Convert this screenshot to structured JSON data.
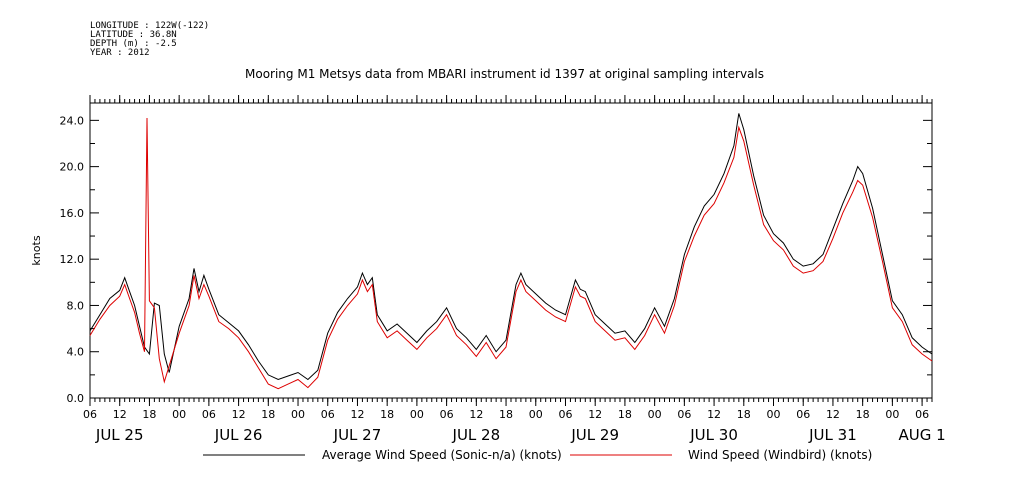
{
  "metadata": {
    "longitude": "LONGITUDE : 122W(-122)",
    "latitude": "LATITUDE : 36.8N",
    "depth": "DEPTH (m) : -2.5",
    "year": "YEAR : 2012"
  },
  "colors": {
    "sonic": "#000000",
    "windbird": "#dd0000"
  },
  "chart_data": {
    "type": "line",
    "title": "Mooring M1 Metsys data from MBARI instrument id 1397 at original sampling intervals",
    "ylabel": "knots",
    "ylim": [
      0,
      25.5
    ],
    "yticks": [
      "0.0",
      "4.0",
      "8.0",
      "12.0",
      "16.0",
      "20.0",
      "24.0"
    ],
    "xlim": [
      "2012-07-25 06:00",
      "2012-08-01 08:00"
    ],
    "xticks": [
      [
        "2012-07-25 06:00",
        "06"
      ],
      [
        "2012-07-25 12:00",
        "12"
      ],
      [
        "2012-07-25 18:00",
        "18"
      ],
      [
        "2012-07-26 00:00",
        "00"
      ],
      [
        "2012-07-26 06:00",
        "06"
      ],
      [
        "2012-07-26 12:00",
        "12"
      ],
      [
        "2012-07-26 18:00",
        "18"
      ],
      [
        "2012-07-27 00:00",
        "00"
      ],
      [
        "2012-07-27 06:00",
        "06"
      ],
      [
        "2012-07-27 12:00",
        "12"
      ],
      [
        "2012-07-27 18:00",
        "18"
      ],
      [
        "2012-07-28 00:00",
        "00"
      ],
      [
        "2012-07-28 06:00",
        "06"
      ],
      [
        "2012-07-28 12:00",
        "12"
      ],
      [
        "2012-07-28 18:00",
        "18"
      ],
      [
        "2012-07-29 00:00",
        "00"
      ],
      [
        "2012-07-29 06:00",
        "06"
      ],
      [
        "2012-07-29 12:00",
        "12"
      ],
      [
        "2012-07-29 18:00",
        "18"
      ],
      [
        "2012-07-30 00:00",
        "00"
      ],
      [
        "2012-07-30 06:00",
        "06"
      ],
      [
        "2012-07-30 12:00",
        "12"
      ],
      [
        "2012-07-30 18:00",
        "18"
      ],
      [
        "2012-07-31 00:00",
        "00"
      ],
      [
        "2012-07-31 06:00",
        "06"
      ],
      [
        "2012-07-31 12:00",
        "12"
      ],
      [
        "2012-07-31 18:00",
        "18"
      ],
      [
        "2012-08-01 00:00",
        "00"
      ],
      [
        "2012-08-01 06:00",
        "06"
      ]
    ],
    "day_labels": [
      [
        "2012-07-25 12:00",
        "JUL 25"
      ],
      [
        "2012-07-26 12:00",
        "JUL 26"
      ],
      [
        "2012-07-27 12:00",
        "JUL 27"
      ],
      [
        "2012-07-28 12:00",
        "JUL 28"
      ],
      [
        "2012-07-29 12:00",
        "JUL 29"
      ],
      [
        "2012-07-30 12:00",
        "JUL 30"
      ],
      [
        "2012-07-31 12:00",
        "JUL 31"
      ],
      [
        "2012-08-01 06:00",
        "AUG 1"
      ]
    ],
    "grid": false,
    "legend": "bottom",
    "series": [
      {
        "name": "Average Wind Speed (Sonic-n/a) (knots)",
        "points": [
          [
            "2012-07-25 06:00",
            5.8
          ],
          [
            "2012-07-25 08:00",
            7.2
          ],
          [
            "2012-07-25 10:00",
            8.6
          ],
          [
            "2012-07-25 12:00",
            9.3
          ],
          [
            "2012-07-25 13:00",
            10.4
          ],
          [
            "2012-07-25 14:00",
            9.2
          ],
          [
            "2012-07-25 15:00",
            8.0
          ],
          [
            "2012-07-25 16:00",
            6.2
          ],
          [
            "2012-07-25 17:00",
            4.4
          ],
          [
            "2012-07-25 18:00",
            3.8
          ],
          [
            "2012-07-25 19:00",
            8.2
          ],
          [
            "2012-07-25 20:00",
            8.0
          ],
          [
            "2012-07-25 21:00",
            3.8
          ],
          [
            "2012-07-25 22:00",
            2.2
          ],
          [
            "2012-07-26 00:00",
            6.2
          ],
          [
            "2012-07-26 02:00",
            8.6
          ],
          [
            "2012-07-26 03:00",
            11.2
          ],
          [
            "2012-07-26 04:00",
            9.2
          ],
          [
            "2012-07-26 05:00",
            10.6
          ],
          [
            "2012-07-26 06:00",
            9.4
          ],
          [
            "2012-07-26 08:00",
            7.2
          ],
          [
            "2012-07-26 10:00",
            6.5
          ],
          [
            "2012-07-26 12:00",
            5.8
          ],
          [
            "2012-07-26 14:00",
            4.6
          ],
          [
            "2012-07-26 16:00",
            3.2
          ],
          [
            "2012-07-26 18:00",
            2.0
          ],
          [
            "2012-07-26 20:00",
            1.6
          ],
          [
            "2012-07-26 22:00",
            1.9
          ],
          [
            "2012-07-27 00:00",
            2.2
          ],
          [
            "2012-07-27 02:00",
            1.6
          ],
          [
            "2012-07-27 04:00",
            2.4
          ],
          [
            "2012-07-27 06:00",
            5.6
          ],
          [
            "2012-07-27 08:00",
            7.4
          ],
          [
            "2012-07-27 10:00",
            8.6
          ],
          [
            "2012-07-27 12:00",
            9.6
          ],
          [
            "2012-07-27 13:00",
            10.8
          ],
          [
            "2012-07-27 14:00",
            9.8
          ],
          [
            "2012-07-27 15:00",
            10.4
          ],
          [
            "2012-07-27 16:00",
            7.2
          ],
          [
            "2012-07-27 18:00",
            5.8
          ],
          [
            "2012-07-27 20:00",
            6.4
          ],
          [
            "2012-07-27 22:00",
            5.6
          ],
          [
            "2012-07-28 00:00",
            4.8
          ],
          [
            "2012-07-28 02:00",
            5.8
          ],
          [
            "2012-07-28 04:00",
            6.6
          ],
          [
            "2012-07-28 06:00",
            7.8
          ],
          [
            "2012-07-28 08:00",
            6.0
          ],
          [
            "2012-07-28 10:00",
            5.2
          ],
          [
            "2012-07-28 12:00",
            4.2
          ],
          [
            "2012-07-28 14:00",
            5.4
          ],
          [
            "2012-07-28 16:00",
            4.0
          ],
          [
            "2012-07-28 18:00",
            5.0
          ],
          [
            "2012-07-28 20:00",
            9.8
          ],
          [
            "2012-07-28 21:00",
            10.8
          ],
          [
            "2012-07-28 22:00",
            9.8
          ],
          [
            "2012-07-29 00:00",
            9.0
          ],
          [
            "2012-07-29 02:00",
            8.2
          ],
          [
            "2012-07-29 04:00",
            7.6
          ],
          [
            "2012-07-29 06:00",
            7.2
          ],
          [
            "2012-07-29 08:00",
            10.2
          ],
          [
            "2012-07-29 09:00",
            9.4
          ],
          [
            "2012-07-29 10:00",
            9.2
          ],
          [
            "2012-07-29 12:00",
            7.2
          ],
          [
            "2012-07-29 14:00",
            6.4
          ],
          [
            "2012-07-29 16:00",
            5.6
          ],
          [
            "2012-07-29 18:00",
            5.8
          ],
          [
            "2012-07-29 20:00",
            4.8
          ],
          [
            "2012-07-29 22:00",
            6.0
          ],
          [
            "2012-07-30 00:00",
            7.8
          ],
          [
            "2012-07-30 02:00",
            6.2
          ],
          [
            "2012-07-30 04:00",
            8.6
          ],
          [
            "2012-07-30 06:00",
            12.4
          ],
          [
            "2012-07-30 08:00",
            14.8
          ],
          [
            "2012-07-30 10:00",
            16.6
          ],
          [
            "2012-07-30 12:00",
            17.6
          ],
          [
            "2012-07-30 14:00",
            19.4
          ],
          [
            "2012-07-30 16:00",
            21.8
          ],
          [
            "2012-07-30 17:00",
            24.6
          ],
          [
            "2012-07-30 18:00",
            23.2
          ],
          [
            "2012-07-30 20:00",
            19.2
          ],
          [
            "2012-07-30 22:00",
            15.8
          ],
          [
            "2012-07-31 00:00",
            14.2
          ],
          [
            "2012-07-31 02:00",
            13.4
          ],
          [
            "2012-07-31 04:00",
            12.0
          ],
          [
            "2012-07-31 06:00",
            11.4
          ],
          [
            "2012-07-31 08:00",
            11.6
          ],
          [
            "2012-07-31 10:00",
            12.4
          ],
          [
            "2012-07-31 12:00",
            14.6
          ],
          [
            "2012-07-31 14:00",
            16.8
          ],
          [
            "2012-07-31 16:00",
            18.8
          ],
          [
            "2012-07-31 17:00",
            20.0
          ],
          [
            "2012-07-31 18:00",
            19.4
          ],
          [
            "2012-07-31 20:00",
            16.4
          ],
          [
            "2012-07-31 22:00",
            12.4
          ],
          [
            "2012-08-01 00:00",
            8.4
          ],
          [
            "2012-08-01 02:00",
            7.2
          ],
          [
            "2012-08-01 04:00",
            5.2
          ],
          [
            "2012-08-01 06:00",
            4.4
          ],
          [
            "2012-08-01 08:00",
            3.8
          ]
        ]
      },
      {
        "name": "Wind Speed (Windbird) (knots)",
        "points": [
          [
            "2012-07-25 06:00",
            5.4
          ],
          [
            "2012-07-25 08:00",
            6.8
          ],
          [
            "2012-07-25 10:00",
            8.0
          ],
          [
            "2012-07-25 12:00",
            8.8
          ],
          [
            "2012-07-25 13:00",
            9.8
          ],
          [
            "2012-07-25 14:00",
            8.6
          ],
          [
            "2012-07-25 15:00",
            7.4
          ],
          [
            "2012-07-25 16:00",
            5.6
          ],
          [
            "2012-07-25 17:00",
            4.0
          ],
          [
            "2012-07-25 17:30",
            24.2
          ],
          [
            "2012-07-25 18:00",
            8.4
          ],
          [
            "2012-07-25 19:00",
            7.8
          ],
          [
            "2012-07-25 20:00",
            3.4
          ],
          [
            "2012-07-25 21:00",
            1.4
          ],
          [
            "2012-07-26 00:00",
            5.6
          ],
          [
            "2012-07-26 02:00",
            8.0
          ],
          [
            "2012-07-26 03:00",
            10.6
          ],
          [
            "2012-07-26 04:00",
            8.6
          ],
          [
            "2012-07-26 05:00",
            9.8
          ],
          [
            "2012-07-26 06:00",
            8.8
          ],
          [
            "2012-07-26 08:00",
            6.6
          ],
          [
            "2012-07-26 10:00",
            6.0
          ],
          [
            "2012-07-26 12:00",
            5.2
          ],
          [
            "2012-07-26 14:00",
            4.0
          ],
          [
            "2012-07-26 16:00",
            2.6
          ],
          [
            "2012-07-26 18:00",
            1.2
          ],
          [
            "2012-07-26 20:00",
            0.8
          ],
          [
            "2012-07-26 22:00",
            1.2
          ],
          [
            "2012-07-27 00:00",
            1.6
          ],
          [
            "2012-07-27 02:00",
            0.9
          ],
          [
            "2012-07-27 04:00",
            1.8
          ],
          [
            "2012-07-27 06:00",
            5.0
          ],
          [
            "2012-07-27 08:00",
            6.8
          ],
          [
            "2012-07-27 10:00",
            8.0
          ],
          [
            "2012-07-27 12:00",
            9.0
          ],
          [
            "2012-07-27 13:00",
            10.2
          ],
          [
            "2012-07-27 14:00",
            9.2
          ],
          [
            "2012-07-27 15:00",
            9.8
          ],
          [
            "2012-07-27 16:00",
            6.6
          ],
          [
            "2012-07-27 18:00",
            5.2
          ],
          [
            "2012-07-27 20:00",
            5.8
          ],
          [
            "2012-07-27 22:00",
            5.0
          ],
          [
            "2012-07-28 00:00",
            4.2
          ],
          [
            "2012-07-28 02:00",
            5.2
          ],
          [
            "2012-07-28 04:00",
            6.0
          ],
          [
            "2012-07-28 06:00",
            7.2
          ],
          [
            "2012-07-28 08:00",
            5.4
          ],
          [
            "2012-07-28 10:00",
            4.6
          ],
          [
            "2012-07-28 12:00",
            3.6
          ],
          [
            "2012-07-28 14:00",
            4.8
          ],
          [
            "2012-07-28 16:00",
            3.4
          ],
          [
            "2012-07-28 18:00",
            4.4
          ],
          [
            "2012-07-28 20:00",
            9.2
          ],
          [
            "2012-07-28 21:00",
            10.2
          ],
          [
            "2012-07-28 22:00",
            9.2
          ],
          [
            "2012-07-29 00:00",
            8.4
          ],
          [
            "2012-07-29 02:00",
            7.6
          ],
          [
            "2012-07-29 04:00",
            7.0
          ],
          [
            "2012-07-29 06:00",
            6.6
          ],
          [
            "2012-07-29 08:00",
            9.6
          ],
          [
            "2012-07-29 09:00",
            8.8
          ],
          [
            "2012-07-29 10:00",
            8.6
          ],
          [
            "2012-07-29 12:00",
            6.6
          ],
          [
            "2012-07-29 14:00",
            5.8
          ],
          [
            "2012-07-29 16:00",
            5.0
          ],
          [
            "2012-07-29 18:00",
            5.2
          ],
          [
            "2012-07-29 20:00",
            4.2
          ],
          [
            "2012-07-29 22:00",
            5.4
          ],
          [
            "2012-07-30 00:00",
            7.2
          ],
          [
            "2012-07-30 02:00",
            5.6
          ],
          [
            "2012-07-30 04:00",
            8.0
          ],
          [
            "2012-07-30 06:00",
            11.8
          ],
          [
            "2012-07-30 08:00",
            14.0
          ],
          [
            "2012-07-30 10:00",
            15.8
          ],
          [
            "2012-07-30 12:00",
            16.8
          ],
          [
            "2012-07-30 14:00",
            18.6
          ],
          [
            "2012-07-30 16:00",
            20.8
          ],
          [
            "2012-07-30 17:00",
            23.4
          ],
          [
            "2012-07-30 18:00",
            22.2
          ],
          [
            "2012-07-30 20:00",
            18.4
          ],
          [
            "2012-07-30 22:00",
            15.0
          ],
          [
            "2012-07-31 00:00",
            13.6
          ],
          [
            "2012-07-31 02:00",
            12.8
          ],
          [
            "2012-07-31 04:00",
            11.4
          ],
          [
            "2012-07-31 06:00",
            10.8
          ],
          [
            "2012-07-31 08:00",
            11.0
          ],
          [
            "2012-07-31 10:00",
            11.8
          ],
          [
            "2012-07-31 12:00",
            13.8
          ],
          [
            "2012-07-31 14:00",
            16.0
          ],
          [
            "2012-07-31 16:00",
            17.8
          ],
          [
            "2012-07-31 17:00",
            18.8
          ],
          [
            "2012-07-31 18:00",
            18.4
          ],
          [
            "2012-07-31 20:00",
            15.6
          ],
          [
            "2012-07-31 22:00",
            11.8
          ],
          [
            "2012-08-01 00:00",
            7.8
          ],
          [
            "2012-08-01 02:00",
            6.6
          ],
          [
            "2012-08-01 04:00",
            4.6
          ],
          [
            "2012-08-01 06:00",
            3.8
          ],
          [
            "2012-08-01 08:00",
            3.2
          ]
        ]
      }
    ]
  }
}
